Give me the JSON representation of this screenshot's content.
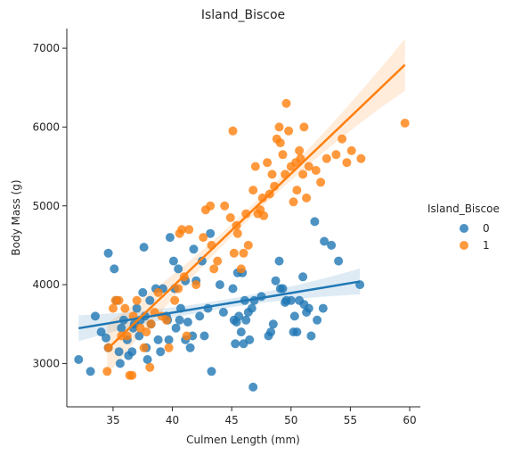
{
  "chart_data": {
    "type": "scatter",
    "title": "Island_Biscoe",
    "xlabel": "Culmen Length (mm)",
    "ylabel": "Body Mass (g)",
    "xlim": [
      31.1,
      60.9
    ],
    "ylim": [
      2450,
      7250
    ],
    "xticks": [
      35,
      40,
      45,
      50,
      55,
      60
    ],
    "yticks": [
      3000,
      4000,
      5000,
      6000,
      7000
    ],
    "grid": false,
    "legend": {
      "title": "Island_Biscoe",
      "placement": "right",
      "entries": [
        "0",
        "1"
      ]
    },
    "series": [
      {
        "name": "0",
        "color": "#1f77b4",
        "regression": {
          "x": [
            32.1,
            55.8
          ],
          "y": [
            3447,
            4040
          ]
        },
        "points": [
          [
            32.1,
            3050
          ],
          [
            33.1,
            2900
          ],
          [
            33.5,
            3600
          ],
          [
            34.0,
            3400
          ],
          [
            34.4,
            3325
          ],
          [
            34.6,
            4400
          ],
          [
            34.6,
            3200
          ],
          [
            35.1,
            4200
          ],
          [
            35.3,
            3800
          ],
          [
            35.5,
            3150
          ],
          [
            35.6,
            3000
          ],
          [
            35.7,
            3450
          ],
          [
            35.9,
            3550
          ],
          [
            36.2,
            3300
          ],
          [
            36.3,
            3100
          ],
          [
            36.6,
            3150
          ],
          [
            36.7,
            3450
          ],
          [
            36.8,
            3500
          ],
          [
            37.0,
            3700
          ],
          [
            37.2,
            3350
          ],
          [
            37.3,
            3550
          ],
          [
            37.5,
            3900
          ],
          [
            37.6,
            4475
          ],
          [
            37.7,
            3600
          ],
          [
            37.8,
            3200
          ],
          [
            37.9,
            3050
          ],
          [
            38.1,
            3800
          ],
          [
            38.2,
            3500
          ],
          [
            38.6,
            3950
          ],
          [
            38.8,
            3300
          ],
          [
            39.0,
            3150
          ],
          [
            39.2,
            3950
          ],
          [
            39.5,
            3600
          ],
          [
            39.6,
            3550
          ],
          [
            39.7,
            3300
          ],
          [
            39.8,
            4600
          ],
          [
            40.1,
            4300
          ],
          [
            40.2,
            3950
          ],
          [
            40.3,
            3450
          ],
          [
            40.5,
            4200
          ],
          [
            40.6,
            3550
          ],
          [
            40.7,
            3700
          ],
          [
            41.1,
            4050
          ],
          [
            41.1,
            3300
          ],
          [
            41.3,
            3525
          ],
          [
            41.5,
            3200
          ],
          [
            41.7,
            3350
          ],
          [
            41.8,
            4450
          ],
          [
            42.0,
            4050
          ],
          [
            42.3,
            3600
          ],
          [
            42.5,
            4300
          ],
          [
            42.7,
            3350
          ],
          [
            43.0,
            3700
          ],
          [
            43.2,
            4650
          ],
          [
            43.3,
            2900
          ],
          [
            44.0,
            4000
          ],
          [
            44.3,
            3650
          ],
          [
            45.1,
            3950
          ],
          [
            45.2,
            3550
          ],
          [
            45.3,
            3250
          ],
          [
            45.4,
            3525
          ],
          [
            45.5,
            4150
          ],
          [
            45.6,
            3600
          ],
          [
            45.8,
            3400
          ],
          [
            45.9,
            4150
          ],
          [
            46.0,
            3250
          ],
          [
            46.1,
            3800
          ],
          [
            46.2,
            3550
          ],
          [
            46.4,
            3650
          ],
          [
            46.5,
            3300
          ],
          [
            46.7,
            3700
          ],
          [
            46.8,
            2700
          ],
          [
            46.9,
            3800
          ],
          [
            47.5,
            3850
          ],
          [
            48.1,
            3350
          ],
          [
            48.3,
            3400
          ],
          [
            48.5,
            3500
          ],
          [
            48.7,
            4050
          ],
          [
            49.0,
            4300
          ],
          [
            49.1,
            3950
          ],
          [
            49.3,
            3950
          ],
          [
            49.5,
            3775
          ],
          [
            49.6,
            3800
          ],
          [
            50.0,
            3800
          ],
          [
            50.2,
            3400
          ],
          [
            50.3,
            3600
          ],
          [
            50.5,
            3400
          ],
          [
            50.7,
            3800
          ],
          [
            51.0,
            4100
          ],
          [
            51.1,
            3750
          ],
          [
            51.3,
            3650
          ],
          [
            51.5,
            3700
          ],
          [
            51.7,
            3350
          ],
          [
            52.0,
            4800
          ],
          [
            52.2,
            3550
          ],
          [
            52.7,
            3700
          ],
          [
            52.8,
            4550
          ],
          [
            53.4,
            4500
          ],
          [
            54.0,
            4300
          ],
          [
            55.8,
            4000
          ]
        ]
      },
      {
        "name": "1",
        "color": "#ff7f0e",
        "regression": {
          "x": [
            34.5,
            59.6
          ],
          "y": [
            3180,
            6790
          ]
        },
        "points": [
          [
            34.5,
            2900
          ],
          [
            34.6,
            3200
          ],
          [
            35.0,
            3700
          ],
          [
            35.2,
            3800
          ],
          [
            35.5,
            3800
          ],
          [
            35.7,
            3350
          ],
          [
            36.0,
            3700
          ],
          [
            36.2,
            3350
          ],
          [
            36.4,
            2850
          ],
          [
            36.6,
            2850
          ],
          [
            36.7,
            3600
          ],
          [
            37.0,
            3800
          ],
          [
            37.3,
            3450
          ],
          [
            37.6,
            3200
          ],
          [
            37.8,
            3400
          ],
          [
            38.1,
            2950
          ],
          [
            38.2,
            3500
          ],
          [
            38.5,
            3650
          ],
          [
            38.8,
            3900
          ],
          [
            39.1,
            3600
          ],
          [
            39.5,
            3550
          ],
          [
            39.7,
            3200
          ],
          [
            40.2,
            3800
          ],
          [
            40.5,
            3950
          ],
          [
            40.6,
            4650
          ],
          [
            40.8,
            4700
          ],
          [
            41.0,
            4100
          ],
          [
            41.2,
            3350
          ],
          [
            41.4,
            4700
          ],
          [
            42.0,
            4000
          ],
          [
            42.6,
            4600
          ],
          [
            42.8,
            4950
          ],
          [
            43.2,
            5000
          ],
          [
            43.3,
            4500
          ],
          [
            43.5,
            4200
          ],
          [
            43.8,
            4300
          ],
          [
            44.4,
            5000
          ],
          [
            44.9,
            4850
          ],
          [
            45.1,
            5950
          ],
          [
            45.2,
            4400
          ],
          [
            45.4,
            4750
          ],
          [
            45.5,
            4650
          ],
          [
            45.8,
            4200
          ],
          [
            46.0,
            4400
          ],
          [
            46.2,
            4900
          ],
          [
            46.4,
            4500
          ],
          [
            46.8,
            5200
          ],
          [
            47.0,
            5500
          ],
          [
            47.2,
            4900
          ],
          [
            47.4,
            4950
          ],
          [
            47.6,
            5100
          ],
          [
            47.7,
            4875
          ],
          [
            48.0,
            5550
          ],
          [
            48.2,
            5150
          ],
          [
            48.4,
            5400
          ],
          [
            48.6,
            5250
          ],
          [
            48.8,
            5850
          ],
          [
            49.0,
            6000
          ],
          [
            49.1,
            5800
          ],
          [
            49.3,
            5650
          ],
          [
            49.5,
            5400
          ],
          [
            49.6,
            6300
          ],
          [
            49.8,
            5950
          ],
          [
            50.0,
            5500
          ],
          [
            50.2,
            5050
          ],
          [
            50.4,
            5550
          ],
          [
            50.5,
            5200
          ],
          [
            50.7,
            5700
          ],
          [
            50.8,
            5600
          ],
          [
            51.0,
            5400
          ],
          [
            51.1,
            6000
          ],
          [
            51.3,
            5100
          ],
          [
            51.5,
            5500
          ],
          [
            52.1,
            5450
          ],
          [
            52.5,
            5300
          ],
          [
            53.0,
            5600
          ],
          [
            53.8,
            5650
          ],
          [
            54.3,
            5850
          ],
          [
            54.7,
            5550
          ],
          [
            55.1,
            5700
          ],
          [
            55.9,
            5600
          ],
          [
            59.6,
            6050
          ]
        ]
      }
    ]
  }
}
